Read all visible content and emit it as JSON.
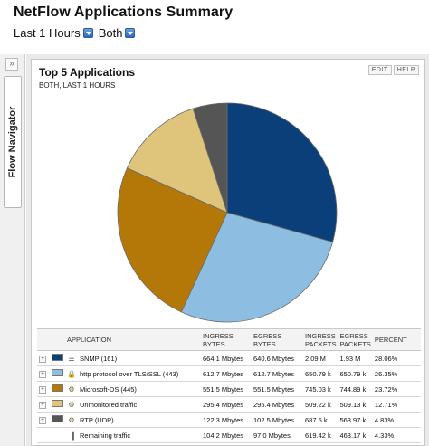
{
  "header": {
    "title": "NetFlow Applications Summary",
    "time_filter": "Last 1 Hours",
    "direction_filter": "Both"
  },
  "navigator": {
    "label": "Flow Navigator",
    "collapse_glyph": "»"
  },
  "panel": {
    "title": "Top 5 Applications",
    "subtitle": "BOTH, LAST 1 HOURS",
    "edit_label": "EDIT",
    "help_label": "HELP"
  },
  "chart_data": {
    "type": "pie",
    "categories": [
      "SNMP (161)",
      "http protocol over TLS/SSL (443)",
      "Microsoft-DS (445)",
      "Unmonitored traffic",
      "RTP (UDP)"
    ],
    "values": [
      28.06,
      26.35,
      23.72,
      12.71,
      4.83
    ],
    "colors": [
      "#0b3f7a",
      "#8dbde0",
      "#b47808",
      "#dfc47c",
      "#555555"
    ]
  },
  "table": {
    "headers": {
      "application": "APPLICATION",
      "ingress_bytes": "INGRESS BYTES",
      "egress_bytes": "EGRESS BYTES",
      "ingress_packets": "INGRESS PACKETS",
      "egress_packets": "EGRESS PACKETS",
      "percent": "PERCENT"
    },
    "rows": [
      {
        "name": "SNMP (161)",
        "ingress_bytes": "664.1 Mbytes",
        "egress_bytes": "640.6 Mbytes",
        "ingress_packets": "2.09 M",
        "egress_packets": "1.93 M",
        "percent": "28.06%",
        "color": "#0b3f7a",
        "icon": "network-icon"
      },
      {
        "name": "http protocol over TLS/SSL (443)",
        "ingress_bytes": "612.7 Mbytes",
        "egress_bytes": "612.7 Mbytes",
        "ingress_packets": "650.79 k",
        "egress_packets": "650.79 k",
        "percent": "26.35%",
        "color": "#8dbde0",
        "icon": "lock-icon"
      },
      {
        "name": "Microsoft-DS (445)",
        "ingress_bytes": "551.5 Mbytes",
        "egress_bytes": "551.5 Mbytes",
        "ingress_packets": "745.03 k",
        "egress_packets": "744.89 k",
        "percent": "23.72%",
        "color": "#b47808",
        "icon": "gears-icon"
      },
      {
        "name": "Unmonitored traffic",
        "ingress_bytes": "295.4 Mbytes",
        "egress_bytes": "295.4 Mbytes",
        "ingress_packets": "509.22 k",
        "egress_packets": "509.13 k",
        "percent": "12.71%",
        "color": "#dfc47c",
        "icon": "gears-icon"
      },
      {
        "name": "RTP (UDP)",
        "ingress_bytes": "122.3 Mbytes",
        "egress_bytes": "102.5 Mbytes",
        "ingress_packets": "687.5 k",
        "egress_packets": "563.97 k",
        "percent": "4.83%",
        "color": "#555555",
        "icon": "gears-icon"
      },
      {
        "name": "Remaining traffic",
        "ingress_bytes": "104.2 Mbytes",
        "egress_bytes": "97.0 Mbytes",
        "ingress_packets": "619.42 k",
        "egress_packets": "463.17 k",
        "percent": "4.33%",
        "color": "",
        "icon": "bar-chart-icon"
      }
    ]
  }
}
